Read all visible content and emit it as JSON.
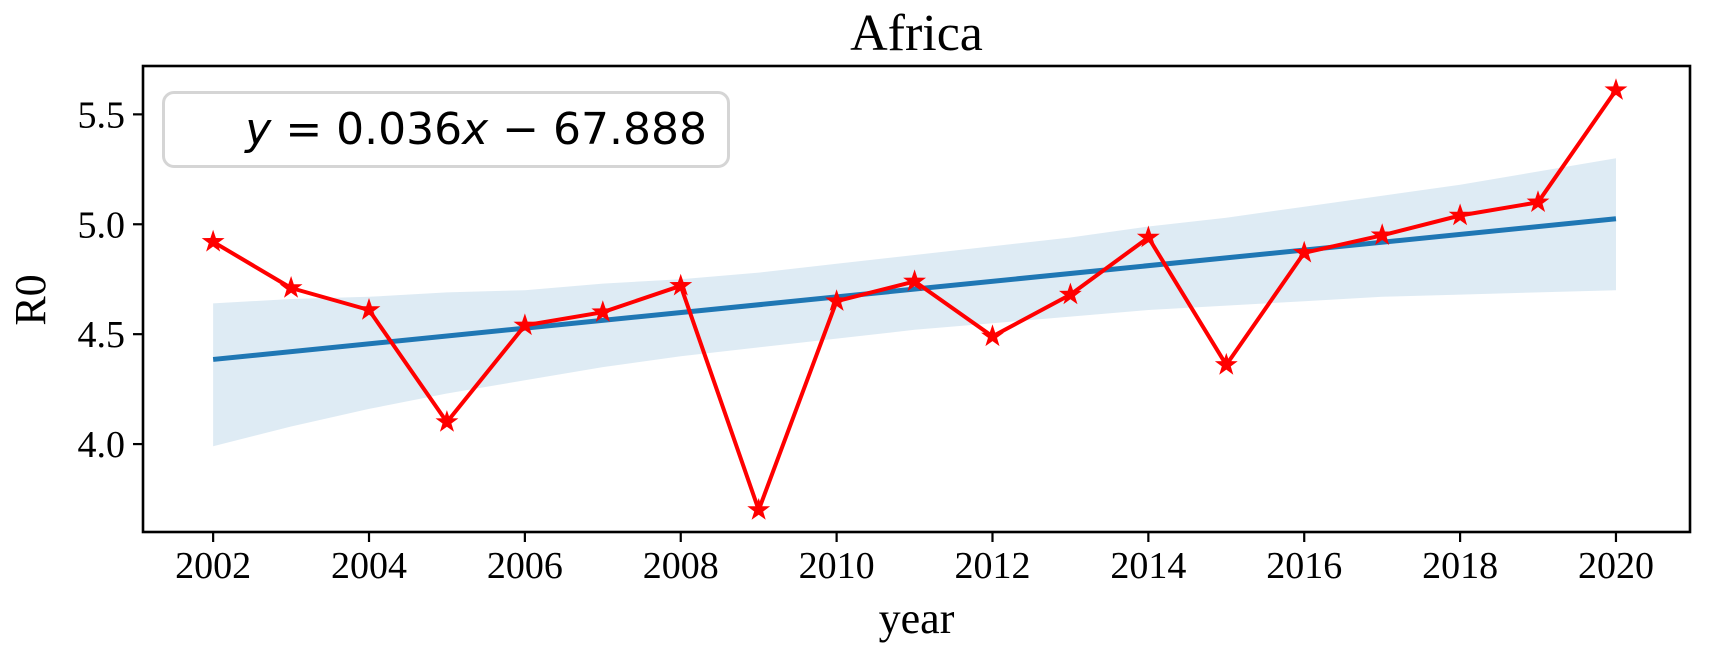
{
  "figure": {
    "title": "Africa",
    "xlabel": "year",
    "ylabel": "R0"
  },
  "annotation": {
    "text": "y = 0.036x − 67.888",
    "var_y": "y",
    "mid": " = 0.036",
    "var_x": "x",
    "tail": " − 67.888"
  },
  "chart_data": {
    "type": "line",
    "title": "Africa",
    "xlabel": "year",
    "ylabel": "R0",
    "x": [
      2002,
      2003,
      2004,
      2005,
      2006,
      2007,
      2008,
      2009,
      2010,
      2011,
      2012,
      2013,
      2014,
      2015,
      2016,
      2017,
      2018,
      2019,
      2020
    ],
    "series": [
      {
        "name": "R0",
        "marker": "star",
        "color": "#ff0000",
        "values": [
          4.92,
          4.71,
          4.61,
          4.1,
          4.54,
          4.6,
          4.72,
          3.7,
          4.65,
          4.74,
          4.49,
          4.68,
          4.94,
          4.36,
          4.87,
          4.95,
          5.04,
          5.1,
          5.61
        ]
      }
    ],
    "trend": {
      "label": "y = 0.036x − 67.888",
      "slope": 0.036,
      "intercept": -67.888,
      "x_start": 2002,
      "y_start": 4.385,
      "x_end": 2020,
      "y_end": 5.025,
      "color": "#1f77b4",
      "line_width": 5
    },
    "ci_band": {
      "color": "#1f77b4",
      "opacity": 0.15,
      "upper": [
        4.64,
        4.66,
        4.67,
        4.69,
        4.7,
        4.73,
        4.75,
        4.78,
        4.82,
        4.86,
        4.9,
        4.94,
        4.99,
        5.03,
        5.08,
        5.13,
        5.18,
        5.24,
        5.3
      ],
      "lower": [
        3.99,
        4.08,
        4.16,
        4.23,
        4.29,
        4.35,
        4.4,
        4.44,
        4.48,
        4.52,
        4.55,
        4.58,
        4.61,
        4.63,
        4.65,
        4.67,
        4.68,
        4.69,
        4.7
      ]
    },
    "xlim": [
      2001.1,
      2020.95
    ],
    "ylim": [
      3.6,
      5.72
    ],
    "x_ticks": [
      2002,
      2004,
      2006,
      2008,
      2010,
      2012,
      2014,
      2016,
      2018,
      2020
    ],
    "y_ticks": [
      "4.0",
      "4.5",
      "5.0",
      "5.5"
    ],
    "grid": false,
    "legend": "none",
    "frame": true,
    "axis_color": "#000000"
  }
}
